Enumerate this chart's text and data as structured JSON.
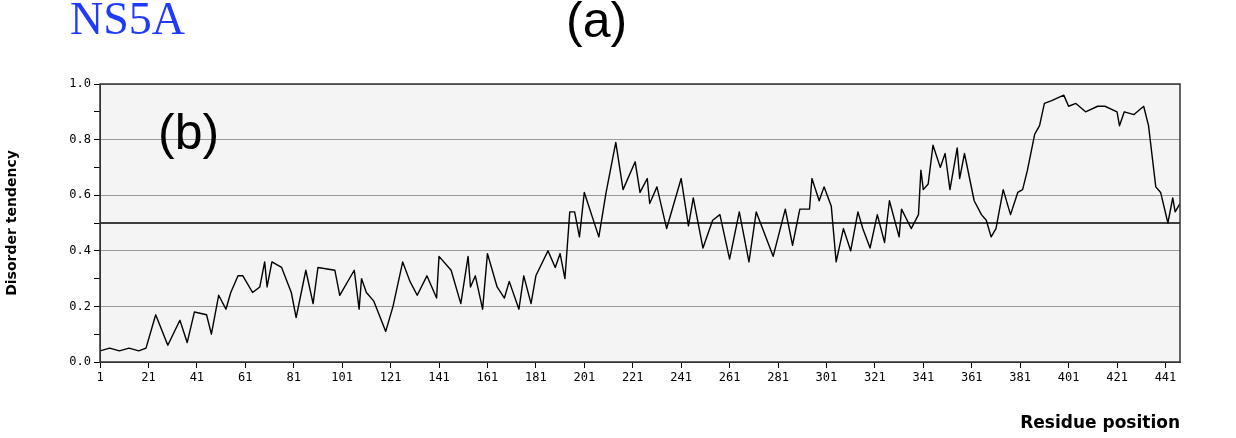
{
  "chart_data": {
    "type": "line",
    "title": "NS5A",
    "xlabel": "Residue position",
    "ylabel": "Disorder tendency",
    "annotations": [
      "(a)",
      "(b)"
    ],
    "x": [
      1,
      5,
      9,
      13,
      17,
      20,
      24,
      29,
      34,
      37,
      40,
      45,
      47,
      50,
      53,
      55,
      58,
      60,
      64,
      67,
      69,
      70,
      72,
      76,
      80,
      82,
      86,
      89,
      91,
      98,
      100,
      106,
      108,
      109,
      111,
      114,
      119,
      122,
      126,
      129,
      132,
      136,
      140,
      141,
      146,
      150,
      153,
      154,
      156,
      159,
      161,
      165,
      168,
      170,
      174,
      176,
      179,
      181,
      186,
      189,
      191,
      193,
      195,
      197,
      199,
      201,
      207,
      210,
      214,
      217,
      222,
      224,
      227,
      228,
      231,
      235,
      241,
      244,
      246,
      250,
      254,
      257,
      259,
      261,
      265,
      269,
      272,
      279,
      284,
      287,
      290,
      294,
      295,
      298,
      300,
      303,
      305,
      308,
      311,
      314,
      316,
      319,
      322,
      325,
      327,
      331,
      332,
      336,
      339,
      340,
      341,
      343,
      345,
      348,
      350,
      352,
      355,
      356,
      358,
      362,
      365,
      367,
      369,
      371,
      374,
      377,
      380,
      382,
      384,
      387,
      389,
      391,
      394,
      399,
      401,
      404,
      408,
      413,
      416,
      421,
      422,
      424,
      428,
      432,
      434,
      437,
      439,
      442,
      444,
      445,
      447
    ],
    "series": [
      {
        "color": "#000000",
        "values": [
          0.04,
          0.05,
          0.04,
          0.05,
          0.04,
          0.05,
          0.17,
          0.06,
          0.15,
          0.07,
          0.18,
          0.17,
          0.1,
          0.24,
          0.19,
          0.25,
          0.31,
          0.31,
          0.25,
          0.27,
          0.36,
          0.27,
          0.36,
          0.34,
          0.25,
          0.16,
          0.33,
          0.21,
          0.34,
          0.33,
          0.24,
          0.33,
          0.19,
          0.3,
          0.25,
          0.22,
          0.11,
          0.2,
          0.36,
          0.29,
          0.24,
          0.31,
          0.23,
          0.38,
          0.33,
          0.21,
          0.38,
          0.27,
          0.31,
          0.19,
          0.39,
          0.27,
          0.23,
          0.29,
          0.19,
          0.31,
          0.21,
          0.31,
          0.4,
          0.34,
          0.39,
          0.3,
          0.54,
          0.54,
          0.45,
          0.61,
          0.45,
          0.61,
          0.79,
          0.62,
          0.72,
          0.61,
          0.66,
          0.57,
          0.63,
          0.48,
          0.66,
          0.49,
          0.59,
          0.41,
          0.51,
          0.53,
          0.45,
          0.37,
          0.54,
          0.36,
          0.54,
          0.38,
          0.55,
          0.42,
          0.55,
          0.55,
          0.66,
          0.58,
          0.63,
          0.56,
          0.36,
          0.48,
          0.4,
          0.54,
          0.48,
          0.41,
          0.53,
          0.43,
          0.58,
          0.45,
          0.55,
          0.48,
          0.53,
          0.69,
          0.62,
          0.64,
          0.78,
          0.7,
          0.75,
          0.62,
          0.77,
          0.66,
          0.75,
          0.58,
          0.53,
          0.51,
          0.45,
          0.48,
          0.62,
          0.53,
          0.61,
          0.62,
          0.69,
          0.82,
          0.85,
          0.93,
          0.94,
          0.96,
          0.92,
          0.93,
          0.9,
          0.92,
          0.92,
          0.9,
          0.85,
          0.9,
          0.89,
          0.92,
          0.85,
          0.63,
          0.61,
          0.5,
          0.59,
          0.54,
          0.57
        ]
      }
    ],
    "xlim": [
      1,
      447
    ],
    "xticks": [
      1,
      21,
      41,
      61,
      81,
      101,
      121,
      141,
      161,
      181,
      201,
      221,
      241,
      261,
      281,
      301,
      321,
      341,
      361,
      381,
      401,
      421,
      441
    ],
    "ylim": [
      0,
      1
    ],
    "yticks": [
      {
        "value": 0,
        "label": "0.0"
      },
      {
        "value": 0.1,
        "label": null
      },
      0.2,
      {
        "value": 0.3,
        "label": null
      },
      0.4,
      {
        "value": 0.5,
        "label": null
      },
      0.6,
      {
        "value": 0.7,
        "label": null
      },
      0.8,
      {
        "value": 0.9,
        "label": null
      },
      {
        "value": 1,
        "label": "1.0"
      }
    ],
    "ref_lines": [
      {
        "axis": "y",
        "value": 0.5,
        "color": "#000000",
        "line_style": "solid"
      }
    ],
    "grid": "y",
    "legend": false,
    "marker": "none",
    "line_style": "solid"
  }
}
